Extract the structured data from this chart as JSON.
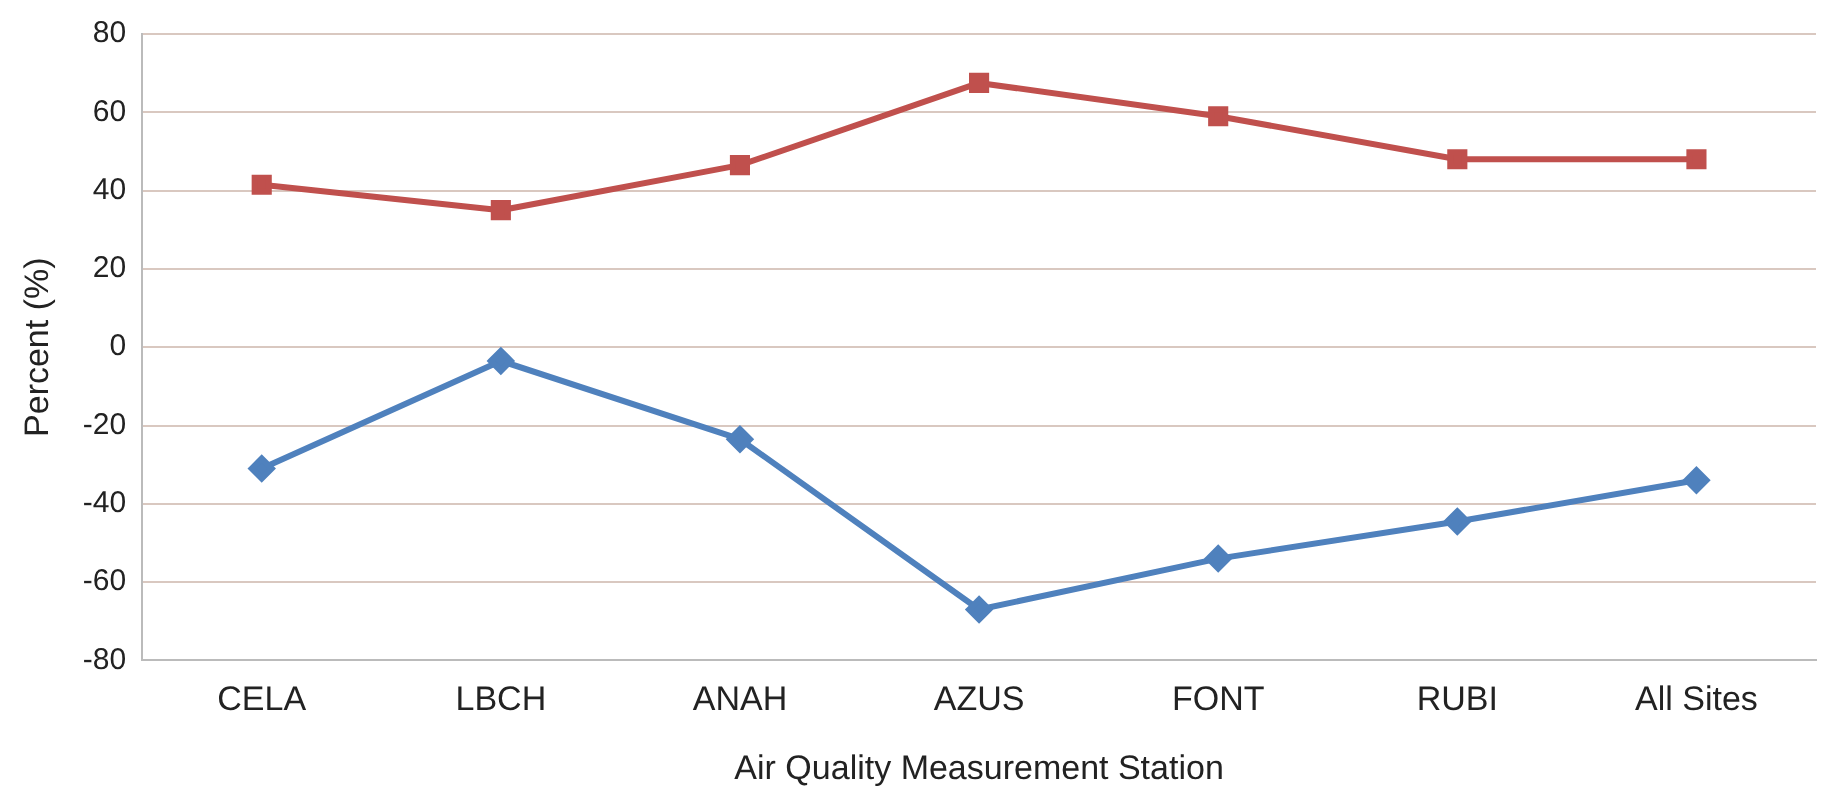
{
  "chart_data": {
    "type": "line",
    "xlabel": "Air Quality Measurement Station",
    "ylabel": "Percent (%)",
    "categories": [
      "CELA",
      "LBCH",
      "ANAH",
      "AZUS",
      "FONT",
      "RUBI",
      "All Sites"
    ],
    "series": [
      {
        "color": "#c0504d",
        "marker": "square",
        "values": [
          41.5,
          35,
          46.5,
          67.5,
          59,
          48,
          48
        ]
      },
      {
        "color": "#4f81bd",
        "marker": "diamond",
        "values": [
          -31,
          -3.5,
          -23.5,
          -67,
          -54,
          -44.5,
          -34
        ]
      }
    ],
    "ylim": [
      -80,
      80
    ],
    "yticks": [
      -80,
      -60,
      -40,
      -20,
      0,
      20,
      40,
      60,
      80
    ],
    "grid": "y",
    "legend": false,
    "line_style": "solid"
  }
}
